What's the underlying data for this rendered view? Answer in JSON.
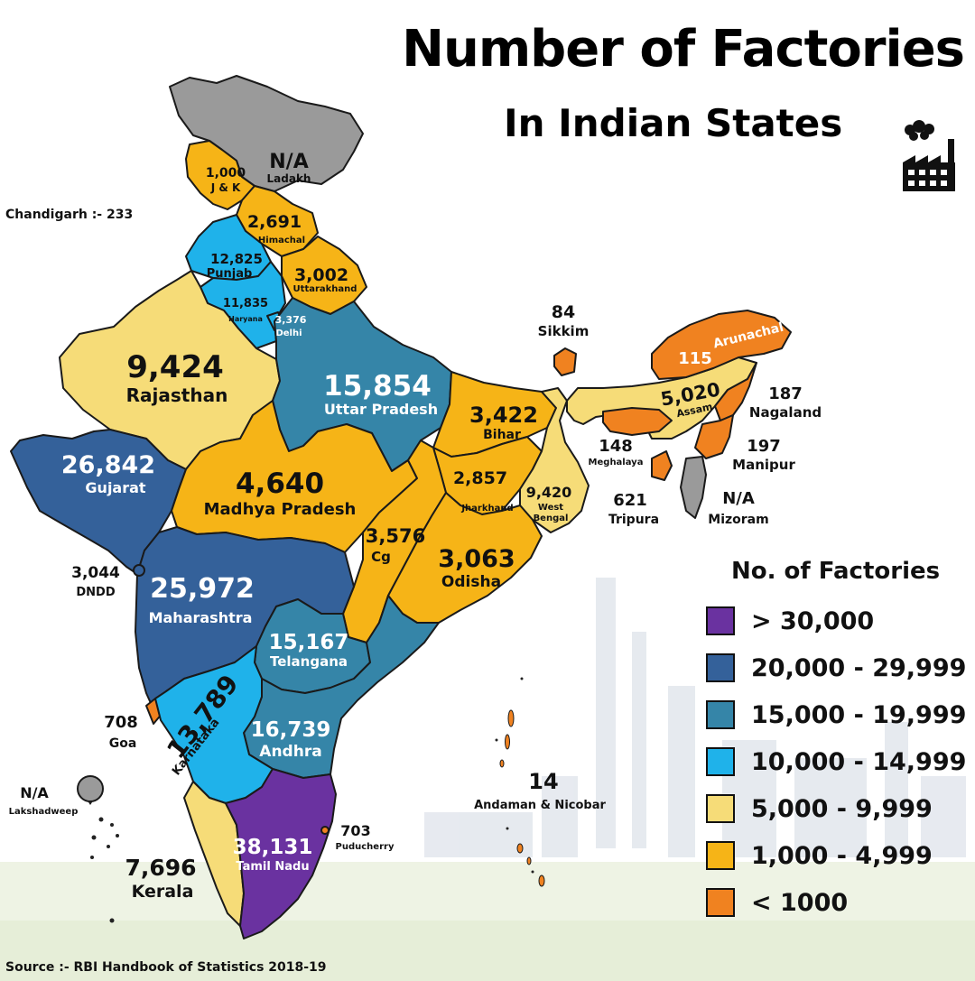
{
  "title": "Number of Factories",
  "subtitle": "In Indian States",
  "side_note": "Chandigarh :- 233",
  "source": "Source :- RBI Handbook of Statistics 2018-19",
  "icon": "factory-icon",
  "colors": {
    "gt_30000": "#6a32a0",
    "r20000": "#34619a",
    "r15000": "#3585a8",
    "r10000": "#1fb2ea",
    "r5000": "#f6dc78",
    "r1000": "#f6b417",
    "lt_1000": "#f08220",
    "na": "#9a9a9a"
  },
  "legend": {
    "title": "No. of Factories",
    "items": [
      {
        "label": "> 30,000",
        "color": "#6a32a0"
      },
      {
        "label": "20,000 - 29,999",
        "color": "#34619a"
      },
      {
        "label": "15,000 - 19,999",
        "color": "#3585a8"
      },
      {
        "label": "10,000 - 14,999",
        "color": "#1fb2ea"
      },
      {
        "label": "5,000 - 9,999",
        "color": "#f6dc78"
      },
      {
        "label": "1,000 - 4,999",
        "color": "#f6b417"
      },
      {
        "label": "< 1000",
        "color": "#f08220"
      }
    ]
  },
  "states": {
    "ladakh": {
      "value": "N/A",
      "name": "Ladakh"
    },
    "jk": {
      "value": "1,000",
      "name": "J & K"
    },
    "himachal": {
      "value": "2,691",
      "name": "Himachal"
    },
    "punjab": {
      "value": "12,825",
      "name": "Punjab"
    },
    "uttarakhand": {
      "value": "3,002",
      "name": "Uttarakhand"
    },
    "haryana": {
      "value": "11,835",
      "name": "Haryana"
    },
    "delhi": {
      "value": "3,376",
      "name": "Delhi"
    },
    "rajasthan": {
      "value": "9,424",
      "name": "Rajasthan"
    },
    "up": {
      "value": "15,854",
      "name": "Uttar Pradesh"
    },
    "bihar": {
      "value": "3,422",
      "name": "Bihar"
    },
    "gujarat": {
      "value": "26,842",
      "name": "Gujarat"
    },
    "mp": {
      "value": "4,640",
      "name": "Madhya Pradesh"
    },
    "jharkhand": {
      "value": "2,857",
      "name": "Jharkhand"
    },
    "wb": {
      "value": "9,420",
      "name": "West",
      "name2": "Bengal"
    },
    "cg": {
      "value": "3,576",
      "name": "Cg"
    },
    "odisha": {
      "value": "3,063",
      "name": "Odisha"
    },
    "dndd": {
      "value": "3,044",
      "name": "DNDD"
    },
    "maharashtra": {
      "value": "25,972",
      "name": "Maharashtra"
    },
    "telangana": {
      "value": "15,167",
      "name": "Telangana"
    },
    "karnataka": {
      "value": "13,789",
      "name": "Karnataka"
    },
    "andhra": {
      "value": "16,739",
      "name": "Andhra"
    },
    "goa": {
      "value": "708",
      "name": "Goa"
    },
    "tamilnadu": {
      "value": "38,131",
      "name": "Tamil Nadu"
    },
    "puducherry": {
      "value": "703",
      "name": "Puducherry"
    },
    "kerala": {
      "value": "7,696",
      "name": "Kerala"
    },
    "lakshadweep": {
      "value": "N/A",
      "name": "Lakshadweep"
    },
    "andaman": {
      "value": "14",
      "name": "Andaman & Nicobar"
    },
    "sikkim": {
      "value": "84",
      "name": "Sikkim"
    },
    "arunachal": {
      "value": "115",
      "name": "Arunachal"
    },
    "assam": {
      "value": "5,020",
      "name": "Assam"
    },
    "nagaland": {
      "value": "187",
      "name": "Nagaland"
    },
    "meghalaya": {
      "value": "148",
      "name": "Meghalaya"
    },
    "manipur": {
      "value": "197",
      "name": "Manipur"
    },
    "tripura": {
      "value": "621",
      "name": "Tripura"
    },
    "mizoram": {
      "value": "N/A",
      "name": "Mizoram"
    }
  }
}
